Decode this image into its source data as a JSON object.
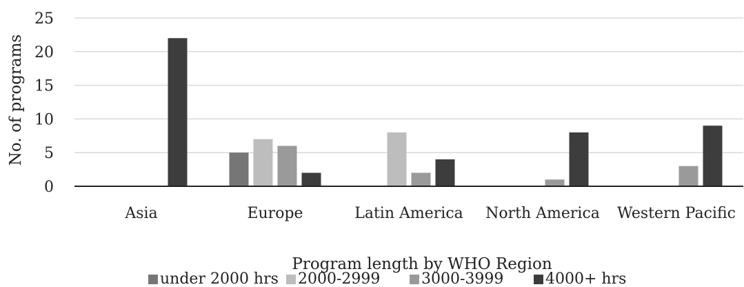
{
  "chart_data": {
    "type": "bar",
    "categories": [
      "Asia",
      "Europe",
      "Latin America",
      "North America",
      "Western Pacific"
    ],
    "series": [
      {
        "name": "under 2000 hrs",
        "color": "#767676",
        "values": [
          0,
          5,
          0,
          0,
          0
        ]
      },
      {
        "name": "2000-2999",
        "color": "#bdbdbd",
        "values": [
          0,
          7,
          8,
          0,
          0
        ]
      },
      {
        "name": "3000-3999",
        "color": "#9a9a9a",
        "values": [
          0,
          6,
          2,
          1,
          3
        ]
      },
      {
        "name": "4000+ hrs",
        "color": "#3d3d3d",
        "values": [
          22,
          2,
          4,
          8,
          9
        ]
      }
    ],
    "title": "",
    "xlabel": "Program length by WHO Region",
    "ylabel": "No. of programs",
    "ylim": [
      0,
      25
    ],
    "yticks": [
      0,
      5,
      10,
      15,
      20,
      25
    ],
    "grid": true,
    "legend_position": "bottom"
  }
}
